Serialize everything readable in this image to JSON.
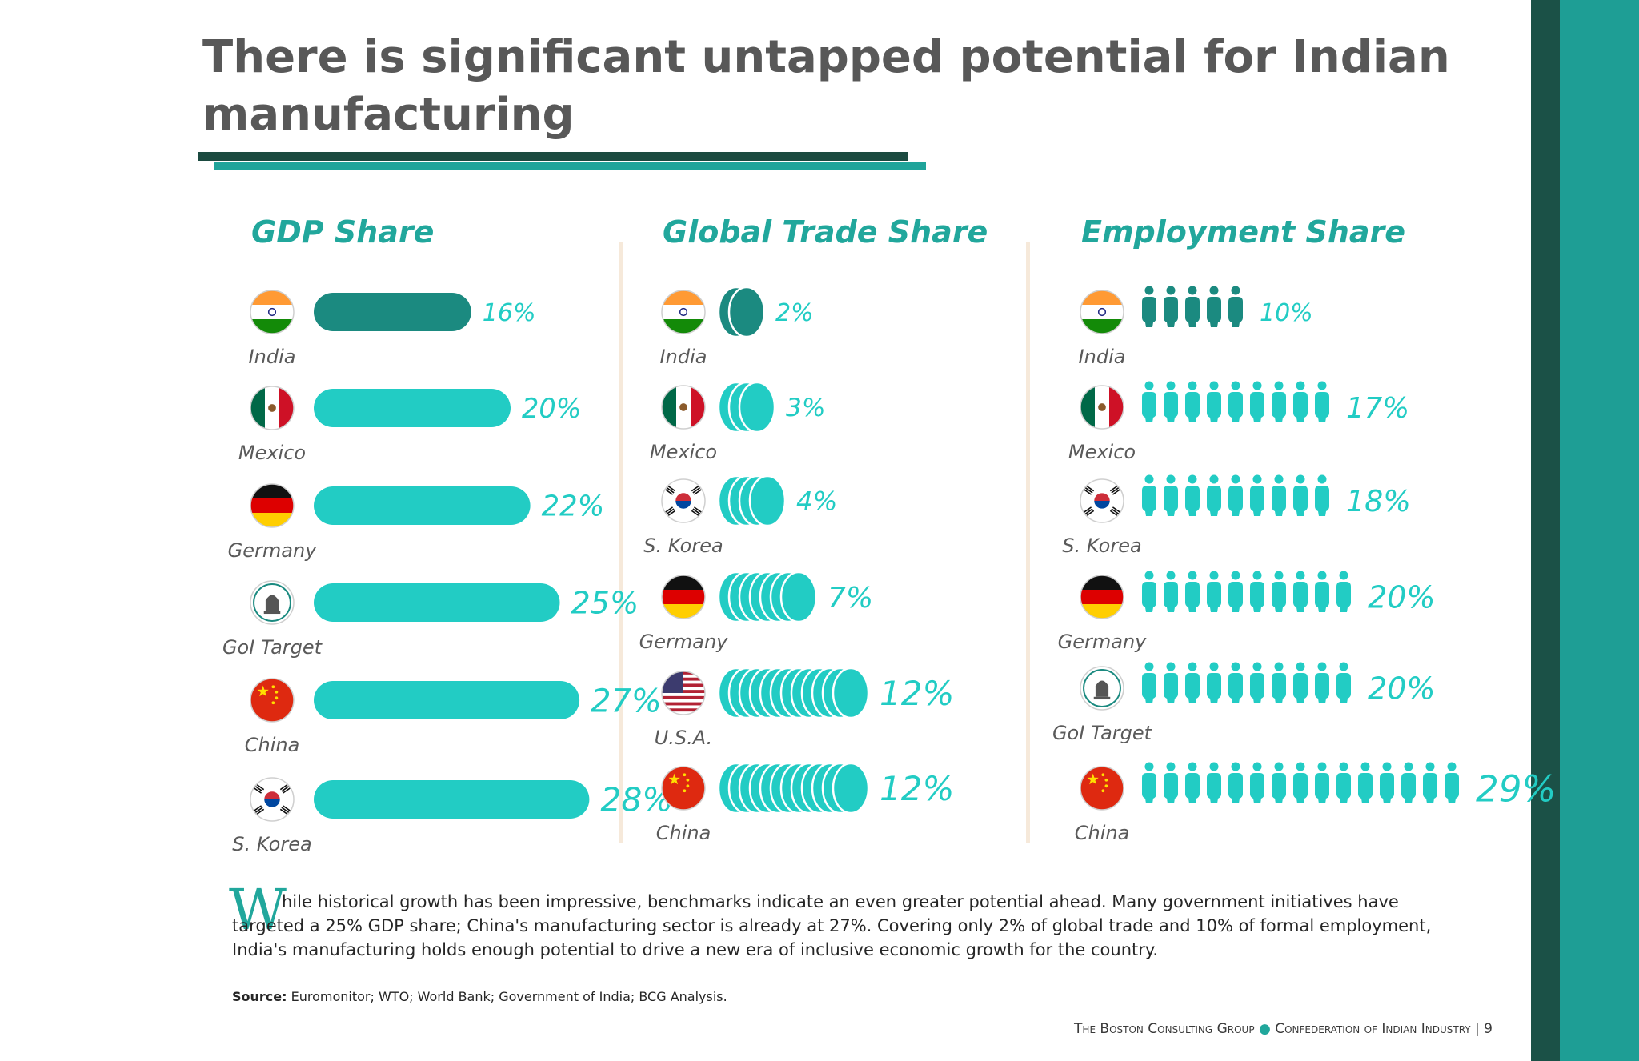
{
  "title": "There is significant untapped potential for Indian manufacturing",
  "colors": {
    "accent": "#21a79c",
    "india_bar": "#1b8a80",
    "other_bar": "#22ccc4",
    "sidebar_dark": "#1b5147",
    "sidebar_teal": "#1e9e95"
  },
  "chart_data": [
    {
      "type": "bar",
      "title": "GDP Share",
      "categories": [
        "India",
        "Mexico",
        "Germany",
        "GoI Target",
        "China",
        "S. Korea"
      ],
      "values": [
        16,
        20,
        22,
        25,
        27,
        28
      ],
      "labels": [
        "16%",
        "20%",
        "22%",
        "25%",
        "27%",
        "28%"
      ],
      "flags": [
        "india",
        "mexico",
        "germany",
        "goi",
        "china",
        "korea"
      ]
    },
    {
      "type": "bar",
      "title": "Global Trade Share",
      "categories": [
        "India",
        "Mexico",
        "S. Korea",
        "Germany",
        "U.S.A.",
        "China"
      ],
      "values": [
        2,
        3,
        4,
        7,
        12,
        12
      ],
      "labels": [
        "2%",
        "3%",
        "4%",
        "7%",
        "12%",
        "12%"
      ],
      "flags": [
        "india",
        "mexico",
        "korea",
        "germany",
        "usa",
        "china"
      ],
      "icon": "coin-stack-icon"
    },
    {
      "type": "bar",
      "title": "Employment Share",
      "categories": [
        "India",
        "Mexico",
        "S. Korea",
        "Germany",
        "GoI Target",
        "China"
      ],
      "values": [
        10,
        17,
        18,
        20,
        20,
        29
      ],
      "labels": [
        "10%",
        "17%",
        "18%",
        "20%",
        "20%",
        "29%"
      ],
      "flags": [
        "india",
        "mexico",
        "korea",
        "germany",
        "goi",
        "china"
      ],
      "icon": "person-icon"
    }
  ],
  "body": {
    "dropcap": "W",
    "text": "hile historical growth has been impressive, benchmarks indicate an even greater potential ahead. Many government initiatives have targeted a 25% GDP share; China's manufacturing sector is already at 27%. Covering only 2% of global trade and 10% of formal employment, India's manufacturing holds enough potential to drive a new era of inclusive economic growth for the country."
  },
  "source": {
    "label": "Source:",
    "text": "Euromonitor; WTO; World Bank; Government of India; BCG Analysis."
  },
  "footer": {
    "org1": "The Boston Consulting Group",
    "org2": "Confederation of Indian Industry",
    "page": "9"
  }
}
